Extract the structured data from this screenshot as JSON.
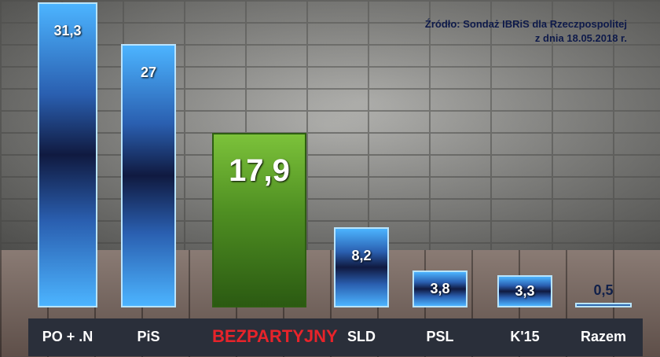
{
  "source": {
    "line1": "Źródło: Sondaż IBRiS dla Rzeczpospolitej",
    "line2": "z dnia 18.05.2018 r."
  },
  "colors": {
    "bar_blue": "#3aa4f5",
    "bar_green": "#5a9e2a",
    "highlight_label": "#e8232a"
  },
  "chart_data": {
    "type": "bar",
    "categories": [
      "PO + .N",
      "PiS",
      "BEZPARTYJNY",
      "SLD",
      "PSL",
      "K'15",
      "Razem"
    ],
    "values": [
      31.3,
      27,
      17.9,
      8.2,
      3.8,
      3.3,
      0.5
    ],
    "value_labels": [
      "31,3",
      "27",
      "17,9",
      "8,2",
      "3,8",
      "3,3",
      "0,5"
    ],
    "highlighted_category": "BEZPARTYJNY",
    "ylim": [
      0,
      31.3
    ],
    "grid": false,
    "title": "",
    "xlabel": "",
    "ylabel": ""
  }
}
